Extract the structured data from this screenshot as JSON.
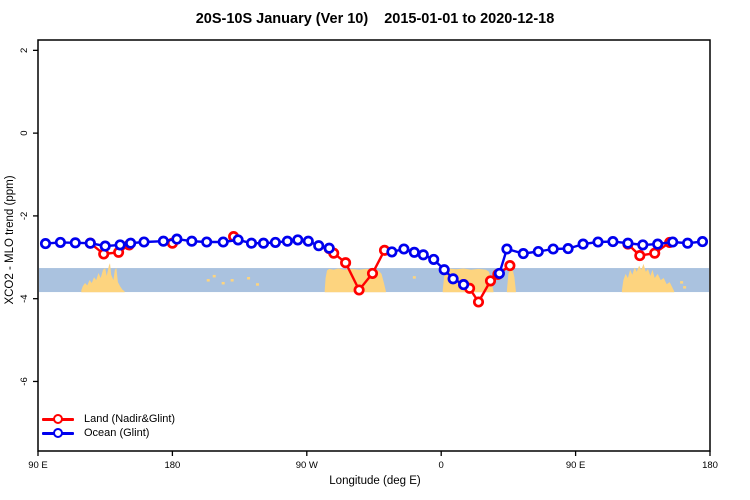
{
  "title": {
    "main": "20S-10S January (Ver 10)",
    "dates": "2015-01-01 to 2020-12-18"
  },
  "chart_data": {
    "type": "line",
    "title": "20S-10S January (Ver 10)  2015-01-01 to 2020-12-18",
    "xlabel": "Longitude (deg E)",
    "ylabel": "XCO2 - MLO trend (ppm)",
    "xlim": [
      90,
      540
    ],
    "ylim": [
      -7.68,
      2.25
    ],
    "grid": false,
    "x_ticks": [
      {
        "at": 90,
        "label": "90 E"
      },
      {
        "at": 180,
        "label": "180"
      },
      {
        "at": 270,
        "label": "90 W"
      },
      {
        "at": 360,
        "label": "0"
      },
      {
        "at": 450,
        "label": "90 E"
      },
      {
        "at": 540,
        "label": "180"
      }
    ],
    "y_ticks": [
      {
        "at": 2,
        "label": "2"
      },
      {
        "at": 0,
        "label": "0"
      },
      {
        "at": -2,
        "label": "-2"
      },
      {
        "at": -4,
        "label": "-4"
      },
      {
        "at": -6,
        "label": "-6"
      }
    ],
    "reference_band": {
      "from": -3.26,
      "to": -3.84,
      "color": "#aac2df"
    },
    "land_shading": {
      "color": "#fdd47f",
      "base": -3.845,
      "regions": [
        {
          "name": "australia-left",
          "outline": [
            [
              119,
              -3.8
            ],
            [
              120,
              -3.7
            ],
            [
              121.5,
              -3.62
            ],
            [
              123,
              -3.68
            ],
            [
              124.5,
              -3.55
            ],
            [
              126,
              -3.62
            ],
            [
              127.5,
              -3.48
            ],
            [
              129,
              -3.55
            ],
            [
              130.5,
              -3.38
            ],
            [
              132,
              -3.5
            ],
            [
              133.5,
              -3.3
            ],
            [
              135,
              -3.26
            ],
            [
              136,
              -3.45
            ],
            [
              137.5,
              -3.2
            ],
            [
              138.2,
              -3.14
            ],
            [
              139,
              -3.42
            ],
            [
              140.5,
              -3.55
            ],
            [
              141.5,
              -3.3
            ],
            [
              142.5,
              -3.26
            ],
            [
              143.5,
              -3.6
            ],
            [
              145,
              -3.7
            ],
            [
              146.5,
              -3.78
            ],
            [
              148,
              -3.82
            ]
          ]
        },
        {
          "name": "south-america",
          "outline": [
            [
              282,
              -3.8
            ],
            [
              282.6,
              -3.5
            ],
            [
              283.5,
              -3.32
            ],
            [
              285,
              -3.28
            ],
            [
              288,
              -3.3
            ],
            [
              291,
              -3.27
            ],
            [
              295,
              -3.3
            ],
            [
              300,
              -3.28
            ],
            [
              305,
              -3.3
            ],
            [
              310,
              -3.28
            ],
            [
              315,
              -3.3
            ],
            [
              318,
              -3.32
            ],
            [
              320,
              -3.4
            ],
            [
              321.5,
              -3.6
            ],
            [
              323,
              -3.82
            ]
          ]
        },
        {
          "name": "africa",
          "outline": [
            [
              361,
              -3.8
            ],
            [
              362,
              -3.45
            ],
            [
              363.5,
              -3.3
            ],
            [
              365,
              -3.27
            ],
            [
              370,
              -3.29
            ],
            [
              375,
              -3.27
            ],
            [
              380,
              -3.3
            ],
            [
              385,
              -3.28
            ],
            [
              390,
              -3.3
            ],
            [
              392,
              -3.35
            ],
            [
              393.5,
              -3.55
            ],
            [
              395,
              -3.82
            ]
          ]
        },
        {
          "name": "madagascar",
          "outline": [
            [
              404,
              -3.8
            ],
            [
              405,
              -3.4
            ],
            [
              406,
              -3.3
            ],
            [
              408,
              -3.32
            ],
            [
              409,
              -3.48
            ],
            [
              410,
              -3.82
            ]
          ]
        },
        {
          "name": "australia-right",
          "outline": [
            [
              481,
              -3.8
            ],
            [
              482,
              -3.55
            ],
            [
              483.5,
              -3.4
            ],
            [
              485,
              -3.5
            ],
            [
              486.5,
              -3.3
            ],
            [
              488,
              -3.42
            ],
            [
              489.5,
              -3.25
            ],
            [
              491,
              -3.35
            ],
            [
              492.5,
              -3.2
            ],
            [
              494,
              -3.3
            ],
            [
              495.5,
              -3.16
            ],
            [
              497,
              -3.35
            ],
            [
              498.5,
              -3.28
            ],
            [
              500,
              -3.45
            ],
            [
              501.5,
              -3.3
            ],
            [
              503,
              -3.5
            ],
            [
              505,
              -3.4
            ],
            [
              507,
              -3.55
            ],
            [
              509,
              -3.5
            ],
            [
              511,
              -3.65
            ],
            [
              513,
              -3.6
            ],
            [
              515,
              -3.75
            ],
            [
              516,
              -3.82
            ]
          ]
        }
      ],
      "speckles": [
        [
          204,
          -3.55
        ],
        [
          208,
          -3.45
        ],
        [
          214,
          -3.62
        ],
        [
          220,
          -3.55
        ],
        [
          231,
          -3.5
        ],
        [
          237,
          -3.65
        ],
        [
          342,
          -3.48
        ],
        [
          521,
          -3.6
        ],
        [
          523,
          -3.72
        ]
      ]
    },
    "series": [
      {
        "name": "Land (Nadir&Glint)",
        "color": "#ff0000",
        "segments": [
          [
            [
              125,
              -2.66
            ],
            [
              134,
              -2.92
            ],
            [
              144,
              -2.88
            ],
            [
              151,
              -2.7
            ]
          ],
          [
            [
              180,
              -2.66
            ]
          ],
          [
            [
              221,
              -2.5
            ]
          ],
          [
            [
              285,
              -2.79
            ],
            [
              288,
              -2.9
            ],
            [
              296,
              -3.13
            ],
            [
              305,
              -3.79
            ],
            [
              314,
              -3.39
            ],
            [
              322,
              -2.83
            ]
          ],
          [
            [
              375,
              -3.66
            ],
            [
              379,
              -3.75
            ],
            [
              385,
              -4.08
            ],
            [
              393,
              -3.57
            ],
            [
              398,
              -3.41
            ],
            [
              406,
              -3.2
            ]
          ],
          [
            [
              485,
              -2.68
            ],
            [
              493,
              -2.96
            ],
            [
              503,
              -2.9
            ],
            [
              513,
              -2.64
            ]
          ]
        ]
      },
      {
        "name": "Ocean (Glint)",
        "color": "#0000ee",
        "segments": [
          [
            [
              95,
              -2.67
            ],
            [
              105,
              -2.64
            ],
            [
              115,
              -2.65
            ],
            [
              125,
              -2.66
            ],
            [
              135,
              -2.73
            ],
            [
              145,
              -2.7
            ],
            [
              152,
              -2.66
            ],
            [
              161,
              -2.63
            ],
            [
              174,
              -2.61
            ],
            [
              183,
              -2.56
            ],
            [
              193,
              -2.61
            ],
            [
              203,
              -2.63
            ],
            [
              214,
              -2.63
            ],
            [
              224,
              -2.58
            ],
            [
              233,
              -2.66
            ],
            [
              241,
              -2.66
            ],
            [
              249,
              -2.64
            ],
            [
              257,
              -2.61
            ],
            [
              264,
              -2.58
            ],
            [
              271,
              -2.61
            ],
            [
              278,
              -2.72
            ],
            [
              285,
              -2.78
            ]
          ],
          [
            [
              327,
              -2.87
            ],
            [
              335,
              -2.8
            ],
            [
              342,
              -2.88
            ],
            [
              348,
              -2.94
            ],
            [
              355,
              -3.05
            ],
            [
              362,
              -3.3
            ],
            [
              368,
              -3.52
            ],
            [
              375,
              -3.66
            ]
          ],
          [
            [
              399,
              -3.39
            ],
            [
              404,
              -2.8
            ],
            [
              415,
              -2.91
            ],
            [
              425,
              -2.86
            ],
            [
              435,
              -2.8
            ],
            [
              445,
              -2.79
            ],
            [
              455,
              -2.68
            ],
            [
              465,
              -2.63
            ],
            [
              475,
              -2.62
            ],
            [
              485,
              -2.66
            ],
            [
              495,
              -2.7
            ],
            [
              505,
              -2.68
            ],
            [
              515,
              -2.63
            ],
            [
              525,
              -2.66
            ],
            [
              535,
              -2.62
            ]
          ]
        ]
      }
    ],
    "legend": {
      "position": "bottom-left",
      "items": [
        {
          "label": "Land (Nadir&Glint)",
          "color": "#ff0000"
        },
        {
          "label": "Ocean (Glint)",
          "color": "#0000ee"
        }
      ]
    }
  }
}
